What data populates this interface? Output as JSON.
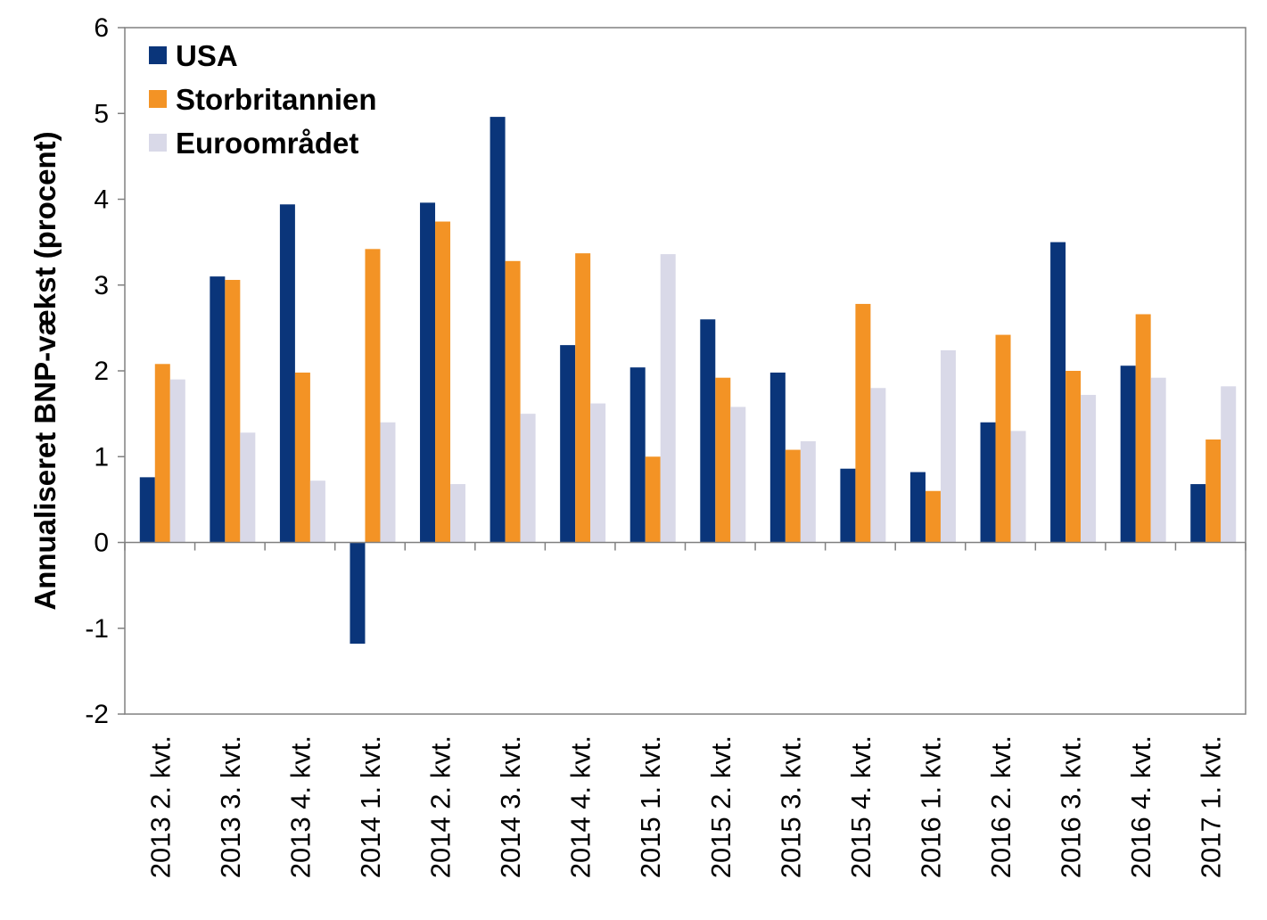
{
  "chart_data": {
    "type": "bar",
    "categories": [
      "2013 2. kvt.",
      "2013 3. kvt.",
      "2013 4. kvt.",
      "2014 1. kvt.",
      "2014 2. kvt.",
      "2014 3. kvt.",
      "2014 4. kvt.",
      "2015 1. kvt.",
      "2015 2. kvt.",
      "2015 3. kvt.",
      "2015 4. kvt.",
      "2016 1. kvt.",
      "2016 2. kvt.",
      "2016 3. kvt.",
      "2016 4. kvt.",
      "2017 1. kvt."
    ],
    "series": [
      {
        "name": "USA",
        "color": "#0a357a",
        "values": [
          0.76,
          3.1,
          3.94,
          -1.18,
          3.96,
          4.96,
          2.3,
          2.04,
          2.6,
          1.98,
          0.86,
          0.82,
          1.4,
          3.5,
          2.06,
          0.68
        ]
      },
      {
        "name": "Storbritannien",
        "color": "#f39325",
        "values": [
          2.08,
          3.06,
          1.98,
          3.42,
          3.74,
          3.28,
          3.37,
          1.0,
          1.92,
          1.08,
          2.78,
          0.6,
          2.42,
          2.0,
          2.66,
          1.2
        ]
      },
      {
        "name": "Euroområdet",
        "color": "#d9d9e8",
        "values": [
          1.9,
          1.28,
          0.72,
          1.4,
          0.68,
          1.5,
          1.62,
          3.36,
          1.58,
          1.18,
          1.8,
          2.24,
          1.3,
          1.72,
          1.92,
          1.82
        ]
      }
    ],
    "ylabel": "Annualiseret BNP-vækst (procent)",
    "xlabel": "",
    "ylim": [
      -2,
      6
    ],
    "yticks": [
      -2,
      -1,
      0,
      1,
      2,
      3,
      4,
      5,
      6
    ],
    "legend_position": "top-left",
    "grid": false
  }
}
